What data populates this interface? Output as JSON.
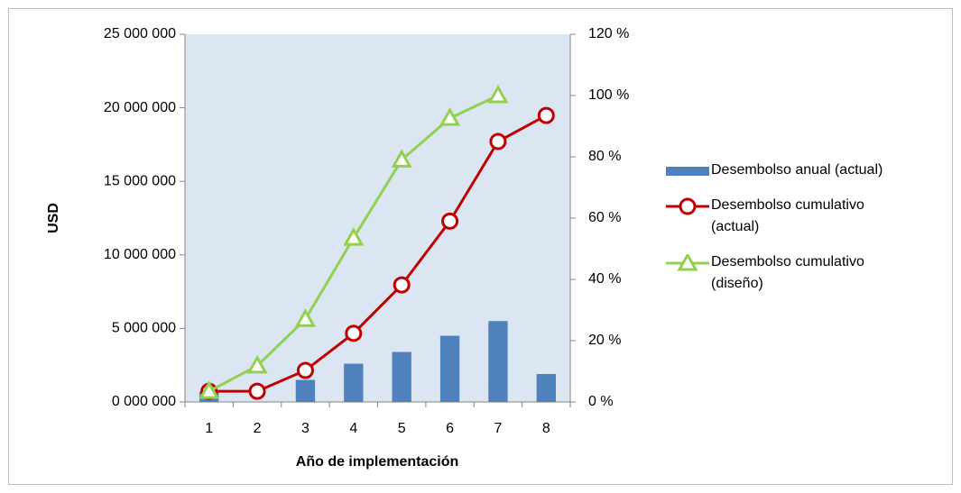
{
  "chart_data": {
    "type": "combo",
    "categories": [
      "1",
      "2",
      "3",
      "4",
      "5",
      "6",
      "7",
      "8"
    ],
    "series": [
      {
        "name": "Desembolso anual (actual)",
        "type": "bar",
        "color": "#4f81bd",
        "values": [
          700000,
          0,
          1500000,
          2600000,
          3400000,
          4500000,
          5500000,
          1900000
        ]
      },
      {
        "name": "Desembolso cumulativo (actual)",
        "type": "line",
        "marker": "circle",
        "axis": "y2",
        "color": "#c00000",
        "values": [
          3.5,
          3.5,
          10.3,
          22.4,
          38.2,
          59,
          85,
          93.5
        ]
      },
      {
        "name": "Desembolso cumulativo (diseño)",
        "type": "line",
        "marker": "triangle",
        "axis": "y2",
        "color": "#92d050",
        "values": [
          3.5,
          11.8,
          27,
          53.5,
          79,
          92.6,
          100,
          null
        ]
      }
    ],
    "xlabel": "Año de implementación",
    "ylabel": "USD",
    "ylim": [
      0,
      25000000
    ],
    "yticks": [
      {
        "value": 0,
        "label": "0 000 000"
      },
      {
        "value": 5000000,
        "label": "5 000 000"
      },
      {
        "value": 10000000,
        "label": "10 000 000"
      },
      {
        "value": 15000000,
        "label": "15 000 000"
      },
      {
        "value": 20000000,
        "label": "20 000 000"
      },
      {
        "value": 25000000,
        "label": "25 000 000"
      }
    ],
    "y2lim": [
      0,
      120
    ],
    "y2ticks": [
      {
        "value": 0,
        "label": "0 %"
      },
      {
        "value": 20,
        "label": "20 %"
      },
      {
        "value": 40,
        "label": "40 %"
      },
      {
        "value": 60,
        "label": "60 %"
      },
      {
        "value": 80,
        "label": "80 %"
      },
      {
        "value": 100,
        "label": "100 %"
      },
      {
        "value": 120,
        "label": "120 %"
      }
    ],
    "legend": "right",
    "grid": false
  }
}
